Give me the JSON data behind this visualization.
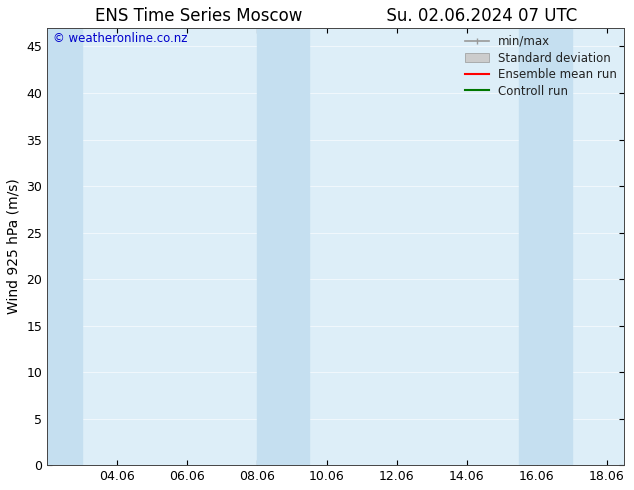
{
  "title_left": "ENS Time Series Moscow",
  "title_right": "Su. 02.06.2024 07 UTC",
  "ylabel": "Wind 925 hPa (m/s)",
  "watermark": "© weatheronline.co.nz",
  "watermark_color": "#0000cc",
  "xlim_start": 2.0,
  "xlim_end": 18.5,
  "ylim": [
    0,
    47
  ],
  "yticks": [
    0,
    5,
    10,
    15,
    20,
    25,
    30,
    35,
    40,
    45
  ],
  "xtick_labels": [
    "04.06",
    "06.06",
    "08.06",
    "10.06",
    "12.06",
    "14.06",
    "16.06",
    "18.06"
  ],
  "xtick_positions": [
    4,
    6,
    8,
    10,
    12,
    14,
    16,
    18
  ],
  "background_color": "#ffffff",
  "plot_bg_color": "#ddeef8",
  "shaded_bands": [
    {
      "x_start": 2.0,
      "x_end": 3.0,
      "color": "#c5dff0"
    },
    {
      "x_start": 8.0,
      "x_end": 9.5,
      "color": "#c5dff0"
    },
    {
      "x_start": 15.5,
      "x_end": 17.0,
      "color": "#c5dff0"
    }
  ],
  "legend_items": [
    {
      "label": "min/max",
      "type": "errorbar",
      "color": "#aaaaaa"
    },
    {
      "label": "Standard deviation",
      "type": "fill",
      "color": "#ccddee"
    },
    {
      "label": "Ensemble mean run",
      "type": "line",
      "color": "#ff0000"
    },
    {
      "label": "Controll run",
      "type": "line",
      "color": "#007700"
    }
  ],
  "title_fontsize": 12,
  "axis_label_fontsize": 10,
  "tick_fontsize": 9,
  "legend_fontsize": 8.5
}
